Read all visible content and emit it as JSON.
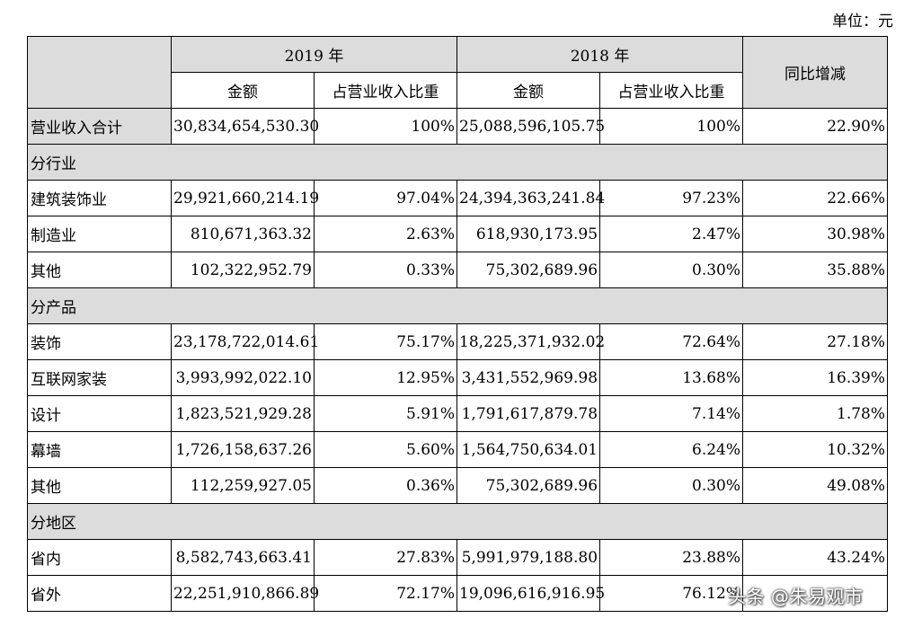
{
  "unit_label": "单位：元",
  "header": {
    "year_2019": "2019 年",
    "year_2018": "2018 年",
    "amount": "金额",
    "ratio": "占营业收入比重",
    "yoy": "同比增减"
  },
  "total": {
    "label": "营业收入合计",
    "amount_2019": "30,834,654,530.30",
    "ratio_2019": "100%",
    "amount_2018": "25,088,596,105.75",
    "ratio_2018": "100%",
    "yoy": "22.90%"
  },
  "sections": [
    {
      "title": "分行业",
      "rows": [
        {
          "label": "建筑装饰业",
          "amount_2019": "29,921,660,214.19",
          "ratio_2019": "97.04%",
          "amount_2018": "24,394,363,241.84",
          "ratio_2018": "97.23%",
          "yoy": "22.66%"
        },
        {
          "label": "制造业",
          "amount_2019": "810,671,363.32",
          "ratio_2019": "2.63%",
          "amount_2018": "618,930,173.95",
          "ratio_2018": "2.47%",
          "yoy": "30.98%"
        },
        {
          "label": "其他",
          "amount_2019": "102,322,952.79",
          "ratio_2019": "0.33%",
          "amount_2018": "75,302,689.96",
          "ratio_2018": "0.30%",
          "yoy": "35.88%"
        }
      ]
    },
    {
      "title": "分产品",
      "rows": [
        {
          "label": "装饰",
          "amount_2019": "23,178,722,014.61",
          "ratio_2019": "75.17%",
          "amount_2018": "18,225,371,932.02",
          "ratio_2018": "72.64%",
          "yoy": "27.18%"
        },
        {
          "label": "互联网家装",
          "amount_2019": "3,993,992,022.10",
          "ratio_2019": "12.95%",
          "amount_2018": "3,431,552,969.98",
          "ratio_2018": "13.68%",
          "yoy": "16.39%"
        },
        {
          "label": "设计",
          "amount_2019": "1,823,521,929.28",
          "ratio_2019": "5.91%",
          "amount_2018": "1,791,617,879.78",
          "ratio_2018": "7.14%",
          "yoy": "1.78%"
        },
        {
          "label": "幕墙",
          "amount_2019": "1,726,158,637.26",
          "ratio_2019": "5.60%",
          "amount_2018": "1,564,750,634.01",
          "ratio_2018": "6.24%",
          "yoy": "10.32%"
        },
        {
          "label": "其他",
          "amount_2019": "112,259,927.05",
          "ratio_2019": "0.36%",
          "amount_2018": "75,302,689.96",
          "ratio_2018": "0.30%",
          "yoy": "49.08%"
        }
      ]
    },
    {
      "title": "分地区",
      "rows": [
        {
          "label": "省内",
          "amount_2019": "8,582,743,663.41",
          "ratio_2019": "27.83%",
          "amount_2018": "5,991,979,188.80",
          "ratio_2018": "23.88%",
          "yoy": "43.24%"
        },
        {
          "label": "省外",
          "amount_2019": "22,251,910,866.89",
          "ratio_2019": "72.17%",
          "amount_2018": "19,096,616,916.95",
          "ratio_2018": "76.12%",
          "yoy": ""
        }
      ]
    }
  ],
  "watermark": "头条 @朱易观市"
}
